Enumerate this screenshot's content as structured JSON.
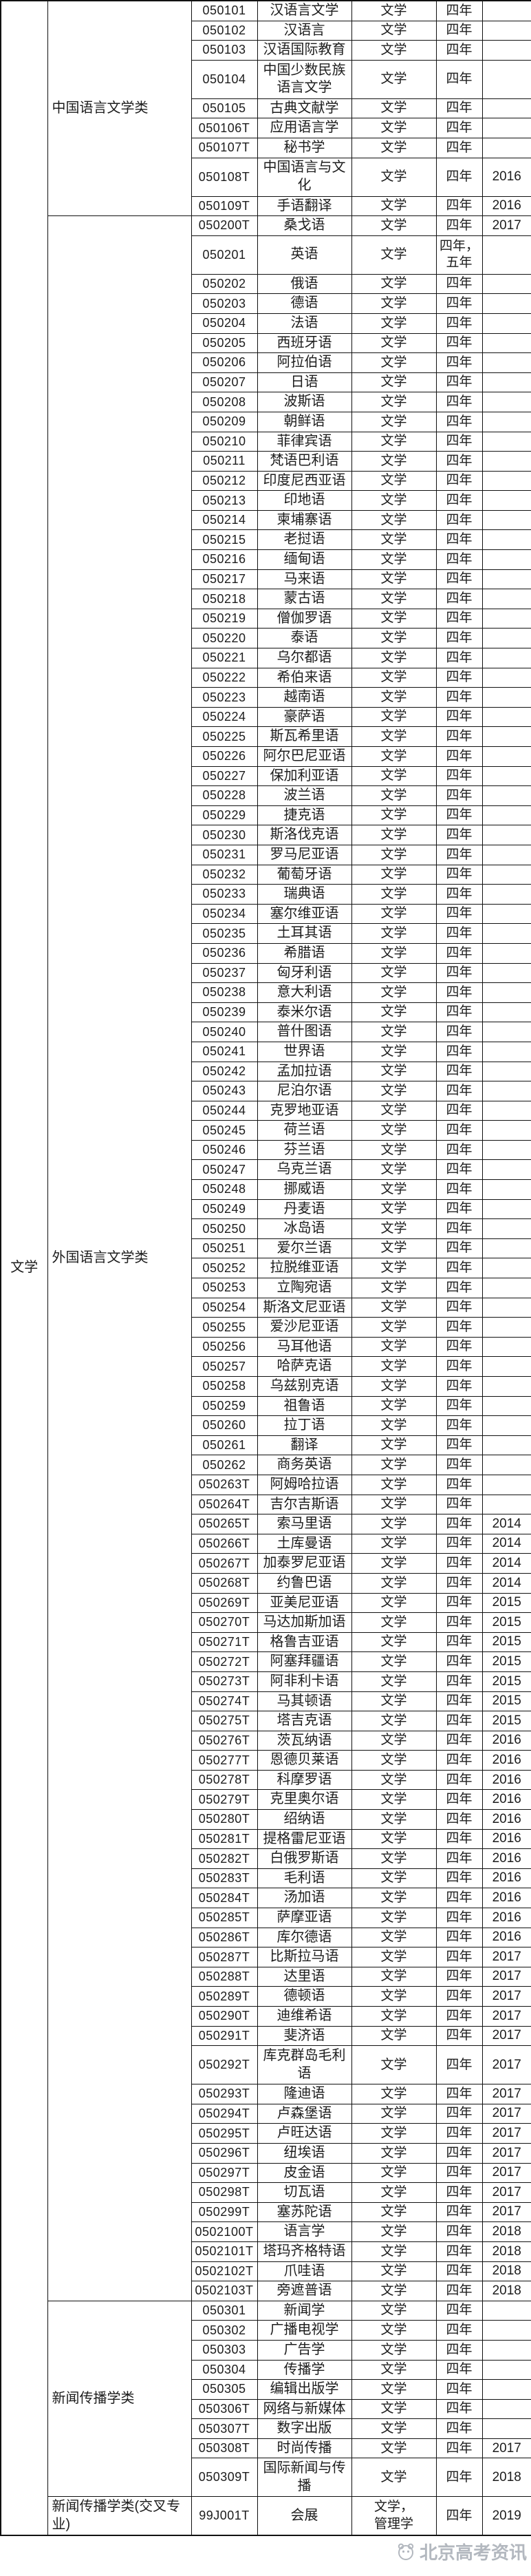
{
  "page": {
    "background": "#ffffff",
    "text_color": "#1c1c1c",
    "border_color": "#111111"
  },
  "category": {
    "label": "文学"
  },
  "watermark": {
    "text": "北京高考资讯"
  },
  "groups": [
    {
      "name": "中国语言文学类",
      "rows": [
        {
          "code": "050101",
          "name": "汉语言文学",
          "degree": "文学",
          "duration": "四年",
          "year": ""
        },
        {
          "code": "050102",
          "name": "汉语言",
          "degree": "文学",
          "duration": "四年",
          "year": ""
        },
        {
          "code": "050103",
          "name": "汉语国际教育",
          "degree": "文学",
          "duration": "四年",
          "year": ""
        },
        {
          "code": "050104",
          "name": "中国少数民族语言文学",
          "degree": "文学",
          "duration": "四年",
          "year": ""
        },
        {
          "code": "050105",
          "name": "古典文献学",
          "degree": "文学",
          "duration": "四年",
          "year": ""
        },
        {
          "code": "050106T",
          "name": "应用语言学",
          "degree": "文学",
          "duration": "四年",
          "year": ""
        },
        {
          "code": "050107T",
          "name": "秘书学",
          "degree": "文学",
          "duration": "四年",
          "year": ""
        },
        {
          "code": "050108T",
          "name": "中国语言与文化",
          "degree": "文学",
          "duration": "四年",
          "year": "2016"
        },
        {
          "code": "050109T",
          "name": "手语翻译",
          "degree": "文学",
          "duration": "四年",
          "year": "2016"
        }
      ]
    },
    {
      "name": "外国语言文学类",
      "rows": [
        {
          "code": "050200T",
          "name": "桑戈语",
          "degree": "文学",
          "duration": "四年",
          "year": "2017"
        },
        {
          "code": "050201",
          "name": "英语",
          "degree": "文学",
          "duration": "四年，\n五年",
          "year": ""
        },
        {
          "code": "050202",
          "name": "俄语",
          "degree": "文学",
          "duration": "四年",
          "year": ""
        },
        {
          "code": "050203",
          "name": "德语",
          "degree": "文学",
          "duration": "四年",
          "year": ""
        },
        {
          "code": "050204",
          "name": "法语",
          "degree": "文学",
          "duration": "四年",
          "year": ""
        },
        {
          "code": "050205",
          "name": "西班牙语",
          "degree": "文学",
          "duration": "四年",
          "year": ""
        },
        {
          "code": "050206",
          "name": "阿拉伯语",
          "degree": "文学",
          "duration": "四年",
          "year": ""
        },
        {
          "code": "050207",
          "name": "日语",
          "degree": "文学",
          "duration": "四年",
          "year": ""
        },
        {
          "code": "050208",
          "name": "波斯语",
          "degree": "文学",
          "duration": "四年",
          "year": ""
        },
        {
          "code": "050209",
          "name": "朝鲜语",
          "degree": "文学",
          "duration": "四年",
          "year": ""
        },
        {
          "code": "050210",
          "name": "菲律宾语",
          "degree": "文学",
          "duration": "四年",
          "year": ""
        },
        {
          "code": "050211",
          "name": "梵语巴利语",
          "degree": "文学",
          "duration": "四年",
          "year": ""
        },
        {
          "code": "050212",
          "name": "印度尼西亚语",
          "degree": "文学",
          "duration": "四年",
          "year": ""
        },
        {
          "code": "050213",
          "name": "印地语",
          "degree": "文学",
          "duration": "四年",
          "year": ""
        },
        {
          "code": "050214",
          "name": "柬埔寨语",
          "degree": "文学",
          "duration": "四年",
          "year": ""
        },
        {
          "code": "050215",
          "name": "老挝语",
          "degree": "文学",
          "duration": "四年",
          "year": ""
        },
        {
          "code": "050216",
          "name": "缅甸语",
          "degree": "文学",
          "duration": "四年",
          "year": ""
        },
        {
          "code": "050217",
          "name": "马来语",
          "degree": "文学",
          "duration": "四年",
          "year": ""
        },
        {
          "code": "050218",
          "name": "蒙古语",
          "degree": "文学",
          "duration": "四年",
          "year": ""
        },
        {
          "code": "050219",
          "name": "僧伽罗语",
          "degree": "文学",
          "duration": "四年",
          "year": ""
        },
        {
          "code": "050220",
          "name": "泰语",
          "degree": "文学",
          "duration": "四年",
          "year": ""
        },
        {
          "code": "050221",
          "name": "乌尔都语",
          "degree": "文学",
          "duration": "四年",
          "year": ""
        },
        {
          "code": "050222",
          "name": "希伯来语",
          "degree": "文学",
          "duration": "四年",
          "year": ""
        },
        {
          "code": "050223",
          "name": "越南语",
          "degree": "文学",
          "duration": "四年",
          "year": ""
        },
        {
          "code": "050224",
          "name": "豪萨语",
          "degree": "文学",
          "duration": "四年",
          "year": ""
        },
        {
          "code": "050225",
          "name": "斯瓦希里语",
          "degree": "文学",
          "duration": "四年",
          "year": ""
        },
        {
          "code": "050226",
          "name": "阿尔巴尼亚语",
          "degree": "文学",
          "duration": "四年",
          "year": ""
        },
        {
          "code": "050227",
          "name": "保加利亚语",
          "degree": "文学",
          "duration": "四年",
          "year": ""
        },
        {
          "code": "050228",
          "name": "波兰语",
          "degree": "文学",
          "duration": "四年",
          "year": ""
        },
        {
          "code": "050229",
          "name": "捷克语",
          "degree": "文学",
          "duration": "四年",
          "year": ""
        },
        {
          "code": "050230",
          "name": "斯洛伐克语",
          "degree": "文学",
          "duration": "四年",
          "year": ""
        },
        {
          "code": "050231",
          "name": "罗马尼亚语",
          "degree": "文学",
          "duration": "四年",
          "year": ""
        },
        {
          "code": "050232",
          "name": "葡萄牙语",
          "degree": "文学",
          "duration": "四年",
          "year": ""
        },
        {
          "code": "050233",
          "name": "瑞典语",
          "degree": "文学",
          "duration": "四年",
          "year": ""
        },
        {
          "code": "050234",
          "name": "塞尔维亚语",
          "degree": "文学",
          "duration": "四年",
          "year": ""
        },
        {
          "code": "050235",
          "name": "土耳其语",
          "degree": "文学",
          "duration": "四年",
          "year": ""
        },
        {
          "code": "050236",
          "name": "希腊语",
          "degree": "文学",
          "duration": "四年",
          "year": ""
        },
        {
          "code": "050237",
          "name": "匈牙利语",
          "degree": "文学",
          "duration": "四年",
          "year": ""
        },
        {
          "code": "050238",
          "name": "意大利语",
          "degree": "文学",
          "duration": "四年",
          "year": ""
        },
        {
          "code": "050239",
          "name": "泰米尔语",
          "degree": "文学",
          "duration": "四年",
          "year": ""
        },
        {
          "code": "050240",
          "name": "普什图语",
          "degree": "文学",
          "duration": "四年",
          "year": ""
        },
        {
          "code": "050241",
          "name": "世界语",
          "degree": "文学",
          "duration": "四年",
          "year": ""
        },
        {
          "code": "050242",
          "name": "孟加拉语",
          "degree": "文学",
          "duration": "四年",
          "year": ""
        },
        {
          "code": "050243",
          "name": "尼泊尔语",
          "degree": "文学",
          "duration": "四年",
          "year": ""
        },
        {
          "code": "050244",
          "name": "克罗地亚语",
          "degree": "文学",
          "duration": "四年",
          "year": ""
        },
        {
          "code": "050245",
          "name": "荷兰语",
          "degree": "文学",
          "duration": "四年",
          "year": ""
        },
        {
          "code": "050246",
          "name": "芬兰语",
          "degree": "文学",
          "duration": "四年",
          "year": ""
        },
        {
          "code": "050247",
          "name": "乌克兰语",
          "degree": "文学",
          "duration": "四年",
          "year": ""
        },
        {
          "code": "050248",
          "name": "挪威语",
          "degree": "文学",
          "duration": "四年",
          "year": ""
        },
        {
          "code": "050249",
          "name": "丹麦语",
          "degree": "文学",
          "duration": "四年",
          "year": ""
        },
        {
          "code": "050250",
          "name": "冰岛语",
          "degree": "文学",
          "duration": "四年",
          "year": ""
        },
        {
          "code": "050251",
          "name": "爱尔兰语",
          "degree": "文学",
          "duration": "四年",
          "year": ""
        },
        {
          "code": "050252",
          "name": "拉脱维亚语",
          "degree": "文学",
          "duration": "四年",
          "year": ""
        },
        {
          "code": "050253",
          "name": "立陶宛语",
          "degree": "文学",
          "duration": "四年",
          "year": ""
        },
        {
          "code": "050254",
          "name": "斯洛文尼亚语",
          "degree": "文学",
          "duration": "四年",
          "year": ""
        },
        {
          "code": "050255",
          "name": "爱沙尼亚语",
          "degree": "文学",
          "duration": "四年",
          "year": ""
        },
        {
          "code": "050256",
          "name": "马耳他语",
          "degree": "文学",
          "duration": "四年",
          "year": ""
        },
        {
          "code": "050257",
          "name": "哈萨克语",
          "degree": "文学",
          "duration": "四年",
          "year": ""
        },
        {
          "code": "050258",
          "name": "乌兹别克语",
          "degree": "文学",
          "duration": "四年",
          "year": ""
        },
        {
          "code": "050259",
          "name": "祖鲁语",
          "degree": "文学",
          "duration": "四年",
          "year": ""
        },
        {
          "code": "050260",
          "name": "拉丁语",
          "degree": "文学",
          "duration": "四年",
          "year": ""
        },
        {
          "code": "050261",
          "name": "翻译",
          "degree": "文学",
          "duration": "四年",
          "year": ""
        },
        {
          "code": "050262",
          "name": "商务英语",
          "degree": "文学",
          "duration": "四年",
          "year": ""
        },
        {
          "code": "050263T",
          "name": "阿姆哈拉语",
          "degree": "文学",
          "duration": "四年",
          "year": ""
        },
        {
          "code": "050264T",
          "name": "吉尔吉斯语",
          "degree": "文学",
          "duration": "四年",
          "year": ""
        },
        {
          "code": "050265T",
          "name": "索马里语",
          "degree": "文学",
          "duration": "四年",
          "year": "2014"
        },
        {
          "code": "050266T",
          "name": "土库曼语",
          "degree": "文学",
          "duration": "四年",
          "year": "2014"
        },
        {
          "code": "050267T",
          "name": "加泰罗尼亚语",
          "degree": "文学",
          "duration": "四年",
          "year": "2014"
        },
        {
          "code": "050268T",
          "name": "约鲁巴语",
          "degree": "文学",
          "duration": "四年",
          "year": "2014"
        },
        {
          "code": "050269T",
          "name": "亚美尼亚语",
          "degree": "文学",
          "duration": "四年",
          "year": "2015"
        },
        {
          "code": "050270T",
          "name": "马达加斯加语",
          "degree": "文学",
          "duration": "四年",
          "year": "2015"
        },
        {
          "code": "050271T",
          "name": "格鲁吉亚语",
          "degree": "文学",
          "duration": "四年",
          "year": "2015"
        },
        {
          "code": "050272T",
          "name": "阿塞拜疆语",
          "degree": "文学",
          "duration": "四年",
          "year": "2015"
        },
        {
          "code": "050273T",
          "name": "阿非利卡语",
          "degree": "文学",
          "duration": "四年",
          "year": "2015"
        },
        {
          "code": "050274T",
          "name": "马其顿语",
          "degree": "文学",
          "duration": "四年",
          "year": "2015"
        },
        {
          "code": "050275T",
          "name": "塔吉克语",
          "degree": "文学",
          "duration": "四年",
          "year": "2015"
        },
        {
          "code": "050276T",
          "name": "茨瓦纳语",
          "degree": "文学",
          "duration": "四年",
          "year": "2016"
        },
        {
          "code": "050277T",
          "name": "恩德贝莱语",
          "degree": "文学",
          "duration": "四年",
          "year": "2016"
        },
        {
          "code": "050278T",
          "name": "科摩罗语",
          "degree": "文学",
          "duration": "四年",
          "year": "2016"
        },
        {
          "code": "050279T",
          "name": "克里奥尔语",
          "degree": "文学",
          "duration": "四年",
          "year": "2016"
        },
        {
          "code": "050280T",
          "name": "绍纳语",
          "degree": "文学",
          "duration": "四年",
          "year": "2016"
        },
        {
          "code": "050281T",
          "name": "提格雷尼亚语",
          "degree": "文学",
          "duration": "四年",
          "year": "2016"
        },
        {
          "code": "050282T",
          "name": "白俄罗斯语",
          "degree": "文学",
          "duration": "四年",
          "year": "2016"
        },
        {
          "code": "050283T",
          "name": "毛利语",
          "degree": "文学",
          "duration": "四年",
          "year": "2016"
        },
        {
          "code": "050284T",
          "name": "汤加语",
          "degree": "文学",
          "duration": "四年",
          "year": "2016"
        },
        {
          "code": "050285T",
          "name": "萨摩亚语",
          "degree": "文学",
          "duration": "四年",
          "year": "2016"
        },
        {
          "code": "050286T",
          "name": "库尔德语",
          "degree": "文学",
          "duration": "四年",
          "year": "2016"
        },
        {
          "code": "050287T",
          "name": "比斯拉马语",
          "degree": "文学",
          "duration": "四年",
          "year": "2017"
        },
        {
          "code": "050288T",
          "name": "达里语",
          "degree": "文学",
          "duration": "四年",
          "year": "2017"
        },
        {
          "code": "050289T",
          "name": "德顿语",
          "degree": "文学",
          "duration": "四年",
          "year": "2017"
        },
        {
          "code": "050290T",
          "name": "迪维希语",
          "degree": "文学",
          "duration": "四年",
          "year": "2017"
        },
        {
          "code": "050291T",
          "name": "斐济语",
          "degree": "文学",
          "duration": "四年",
          "year": "2017"
        },
        {
          "code": "050292T",
          "name": "库克群岛毛利语",
          "degree": "文学",
          "duration": "四年",
          "year": "2017"
        },
        {
          "code": "050293T",
          "name": "隆迪语",
          "degree": "文学",
          "duration": "四年",
          "year": "2017"
        },
        {
          "code": "050294T",
          "name": "卢森堡语",
          "degree": "文学",
          "duration": "四年",
          "year": "2017"
        },
        {
          "code": "050295T",
          "name": "卢旺达语",
          "degree": "文学",
          "duration": "四年",
          "year": "2017"
        },
        {
          "code": "050296T",
          "name": "纽埃语",
          "degree": "文学",
          "duration": "四年",
          "year": "2017"
        },
        {
          "code": "050297T",
          "name": "皮金语",
          "degree": "文学",
          "duration": "四年",
          "year": "2017"
        },
        {
          "code": "050298T",
          "name": "切瓦语",
          "degree": "文学",
          "duration": "四年",
          "year": "2017"
        },
        {
          "code": "050299T",
          "name": "塞苏陀语",
          "degree": "文学",
          "duration": "四年",
          "year": "2017"
        },
        {
          "code": "0502100T",
          "name": "语言学",
          "degree": "文学",
          "duration": "四年",
          "year": "2018"
        },
        {
          "code": "0502101T",
          "name": "塔玛齐格特语",
          "degree": "文学",
          "duration": "四年",
          "year": "2018"
        },
        {
          "code": "0502102T",
          "name": "爪哇语",
          "degree": "文学",
          "duration": "四年",
          "year": "2018"
        },
        {
          "code": "0502103T",
          "name": "旁遮普语",
          "degree": "文学",
          "duration": "四年",
          "year": "2018"
        }
      ]
    },
    {
      "name": "新闻传播学类",
      "rows": [
        {
          "code": "050301",
          "name": "新闻学",
          "degree": "文学",
          "duration": "四年",
          "year": ""
        },
        {
          "code": "050302",
          "name": "广播电视学",
          "degree": "文学",
          "duration": "四年",
          "year": ""
        },
        {
          "code": "050303",
          "name": "广告学",
          "degree": "文学",
          "duration": "四年",
          "year": ""
        },
        {
          "code": "050304",
          "name": "传播学",
          "degree": "文学",
          "duration": "四年",
          "year": ""
        },
        {
          "code": "050305",
          "name": "编辑出版学",
          "degree": "文学",
          "duration": "四年",
          "year": ""
        },
        {
          "code": "050306T",
          "name": "网络与新媒体",
          "degree": "文学",
          "duration": "四年",
          "year": ""
        },
        {
          "code": "050307T",
          "name": "数字出版",
          "degree": "文学",
          "duration": "四年",
          "year": ""
        },
        {
          "code": "050308T",
          "name": "时尚传播",
          "degree": "文学",
          "duration": "四年",
          "year": "2017"
        },
        {
          "code": "050309T",
          "name": "国际新闻与传播",
          "degree": "文学",
          "duration": "四年",
          "year": "2018"
        }
      ]
    },
    {
      "name": "新闻传播学类(交叉专业)",
      "rows": [
        {
          "code": "99J001T",
          "name": "会展",
          "degree": "文学，\n管理学",
          "duration": "四年",
          "year": "2019"
        }
      ]
    }
  ]
}
